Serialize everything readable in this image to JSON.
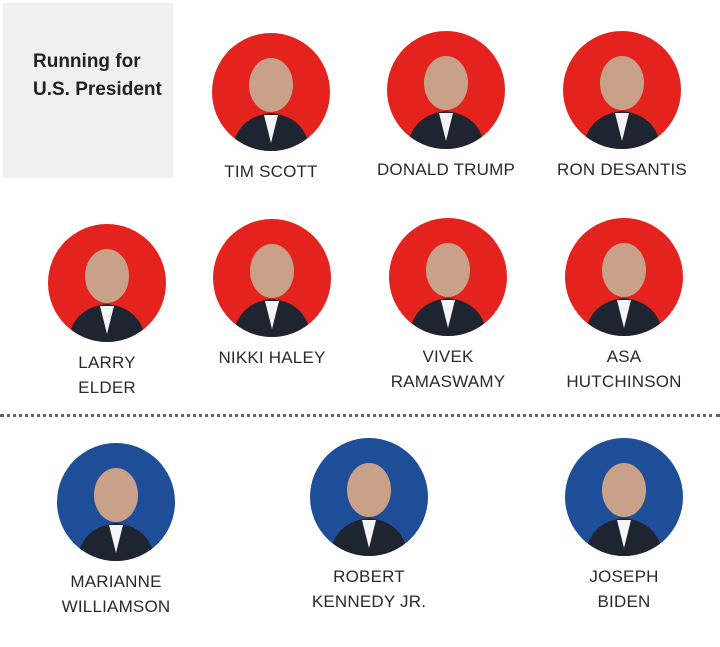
{
  "title": "Running for U.S. President",
  "colors": {
    "republican": "#e5231e",
    "democrat": "#1f4e98"
  },
  "candidates": [
    {
      "name": "TIM SCOTT",
      "party_color": "#e5231e"
    },
    {
      "name": "DONALD TRUMP",
      "party_color": "#e5231e"
    },
    {
      "name": "RON DESANTIS",
      "party_color": "#e5231e"
    },
    {
      "name": "LARRY ELDER",
      "party_color": "#e5231e"
    },
    {
      "name": "NIKKI HALEY",
      "party_color": "#e5231e"
    },
    {
      "name": "VIVEK RAMASWAMY",
      "party_color": "#e5231e"
    },
    {
      "name": "ASA HUTCHINSON",
      "party_color": "#e5231e"
    },
    {
      "name": "MARIANNE WILLIAMSON",
      "party_color": "#1f4e98"
    },
    {
      "name": "ROBERT KENNEDY JR.",
      "party_color": "#1f4e98"
    },
    {
      "name": "JOSEPH BIDEN",
      "party_color": "#1f4e98"
    }
  ]
}
